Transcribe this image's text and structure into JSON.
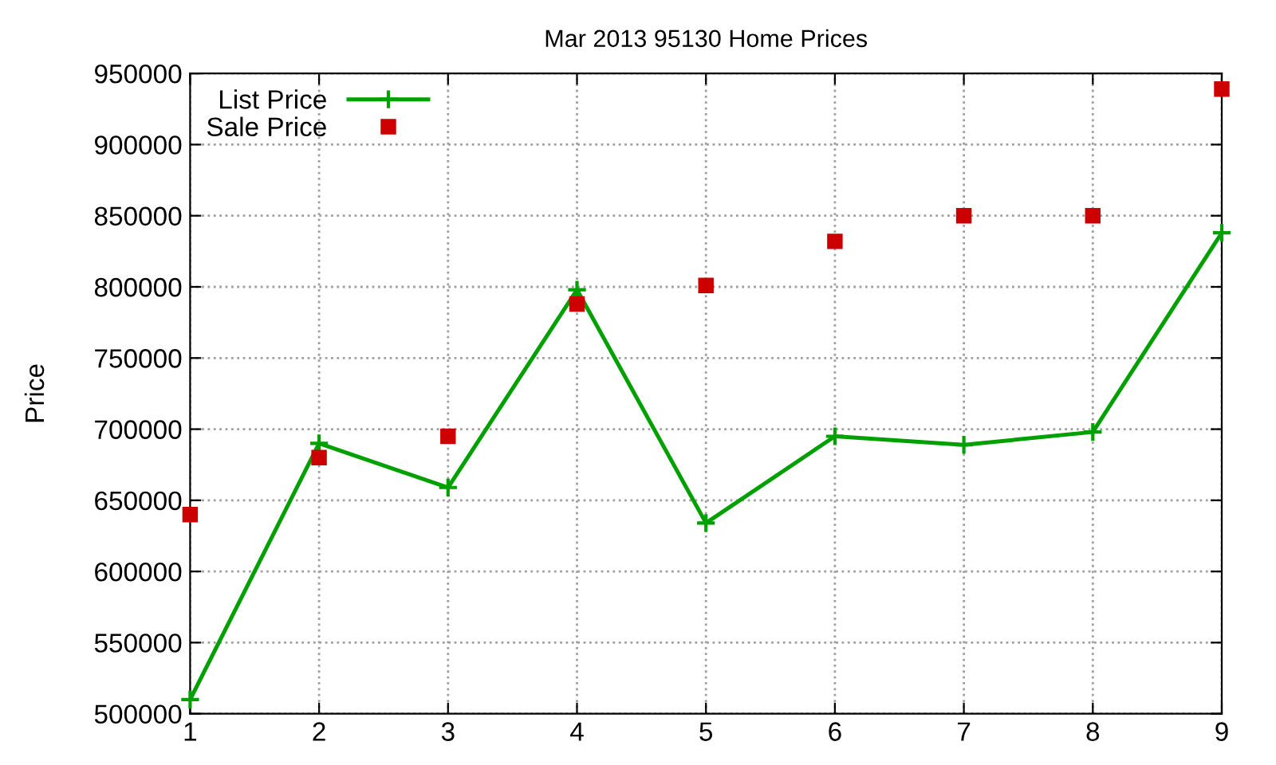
{
  "chart_data": {
    "type": "line",
    "title": "Mar 2013 95130 Home Prices",
    "ylabel": "Price",
    "x": [
      1,
      2,
      3,
      4,
      5,
      6,
      7,
      8,
      9
    ],
    "series": [
      {
        "name": "List Price",
        "color": "#00a000",
        "marker": "cross",
        "values": [
          510000,
          690000,
          659000,
          798000,
          634000,
          695000,
          689000,
          698000,
          838000
        ]
      },
      {
        "name": "Sale Price",
        "type": "scatter",
        "color": "#cc0000",
        "marker": "square",
        "values": [
          640000,
          680000,
          695000,
          788000,
          801000,
          832000,
          850000,
          850000,
          939000
        ]
      }
    ],
    "xlim": [
      1,
      9
    ],
    "xticks": [
      1,
      2,
      3,
      4,
      5,
      6,
      7,
      8,
      9
    ],
    "ylim": [
      500000,
      950000
    ],
    "yticks": [
      500000,
      550000,
      600000,
      650000,
      700000,
      750000,
      800000,
      850000,
      900000,
      950000
    ],
    "grid": true,
    "legend": "top left"
  }
}
